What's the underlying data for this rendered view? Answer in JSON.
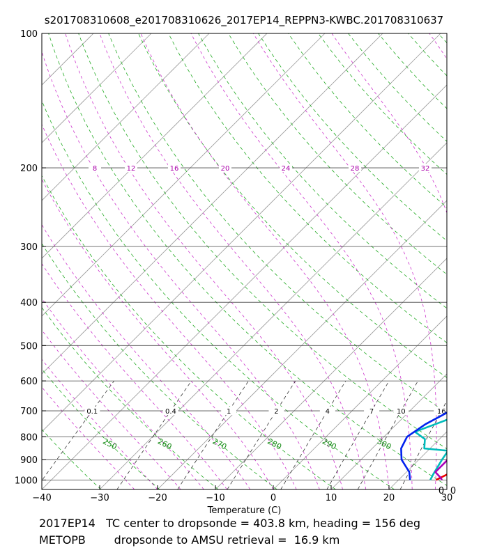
{
  "chart_data": {
    "type": "line",
    "subtype": "skew-t log-p sounding",
    "title": "s201708310608_e201708310626_2017EP14_REPPN3-KWBC.201708310637",
    "xlabel": "Temperature (C)",
    "ylabel": "",
    "xlim": [
      -40,
      30
    ],
    "ylim": [
      1050,
      100
    ],
    "x_ticks": [
      -40,
      -30,
      -20,
      -10,
      0,
      10,
      20,
      30
    ],
    "y_ticks": [
      100,
      200,
      300,
      400,
      500,
      600,
      700,
      800,
      900,
      1000
    ],
    "corner_label": "0",
    "mixing_ratio_labels": [
      "0.1",
      "0.4",
      "1",
      "2",
      "4",
      "7",
      "10",
      "16"
    ],
    "potential_temperature_labels": [
      "250",
      "260",
      "270",
      "280",
      "290",
      "300"
    ],
    "upper_labels": [
      "8",
      "12",
      "16",
      "20",
      "24",
      "28",
      "32"
    ],
    "series": [
      {
        "name": "dropsonde temperature",
        "color": "#ee0000",
        "points": [
          [
            26.5,
            1000
          ],
          [
            27.5,
            970
          ],
          [
            27.5,
            900
          ],
          [
            27.0,
            850
          ],
          [
            26.0,
            800
          ],
          [
            24.5,
            700
          ],
          [
            22.0,
            600
          ],
          [
            20.5,
            500
          ],
          [
            18.0,
            400
          ],
          [
            14.7,
            350
          ],
          [
            13.0,
            300
          ],
          [
            8.0,
            250
          ],
          [
            2.5,
            200
          ],
          [
            0.0,
            180
          ],
          [
            -2.5,
            150
          ],
          [
            -1.5,
            120
          ],
          [
            -0.5,
            110
          ],
          [
            0.0,
            100
          ]
        ]
      },
      {
        "name": "dropsonde dewpoint",
        "color": "#00bbbb",
        "points": [
          [
            25.5,
            1000
          ],
          [
            25.0,
            970
          ],
          [
            24.0,
            900
          ],
          [
            23.5,
            860
          ],
          [
            19.0,
            850
          ],
          [
            17.5,
            810
          ],
          [
            14.5,
            780
          ],
          [
            20.5,
            700
          ],
          [
            19.5,
            600
          ],
          [
            19.0,
            550
          ],
          [
            17.0,
            500
          ],
          [
            14.0,
            450
          ],
          [
            12.0,
            400
          ],
          [
            10.0,
            350
          ],
          [
            10.5,
            300
          ],
          [
            1.0,
            200
          ],
          [
            0.5,
            180
          ],
          [
            18.0,
            150
          ]
        ]
      },
      {
        "name": "AMSU retrieval temperature",
        "color": "#aa00bb",
        "points": [
          [
            27.5,
            1000
          ],
          [
            27.0,
            990
          ],
          [
            25.0,
            960
          ],
          [
            25.0,
            900
          ],
          [
            24.5,
            870
          ],
          [
            26.5,
            860
          ],
          [
            26.5,
            850
          ],
          [
            25.0,
            800
          ],
          [
            23.0,
            750
          ],
          [
            20.5,
            700
          ],
          [
            19.0,
            600
          ],
          [
            18.5,
            500
          ],
          [
            16.0,
            400
          ],
          [
            12.5,
            300
          ],
          [
            6.0,
            250
          ],
          [
            0.5,
            200
          ],
          [
            -3.0,
            150
          ],
          [
            -5.0,
            140
          ],
          [
            -6.5,
            120
          ],
          [
            -5.0,
            100
          ]
        ]
      },
      {
        "name": "AMSU retrieval dewpoint",
        "color": "#0022ee",
        "points": [
          [
            22.0,
            1000
          ],
          [
            20.5,
            960
          ],
          [
            17.0,
            900
          ],
          [
            15.0,
            850
          ],
          [
            14.0,
            800
          ],
          [
            15.0,
            750
          ],
          [
            17.0,
            700
          ],
          [
            20.0,
            650
          ],
          [
            23.0,
            600
          ],
          [
            23.0,
            550
          ],
          [
            21.5,
            500
          ],
          [
            18.0,
            400
          ],
          [
            13.5,
            350
          ],
          [
            11.5,
            300
          ],
          [
            5.5,
            250
          ],
          [
            -1.0,
            200
          ],
          [
            -5.0,
            160
          ],
          [
            -6.5,
            140
          ],
          [
            -7.0,
            120
          ],
          [
            -6.5,
            110
          ],
          [
            -5.0,
            100
          ]
        ]
      }
    ]
  },
  "footer": {
    "line1": "2017EP14   TC center to dropsonde = 403.8 km, heading = 156 deg",
    "line2": "METOPB        dropsonde to AMSU retrieval =  16.9 km"
  }
}
